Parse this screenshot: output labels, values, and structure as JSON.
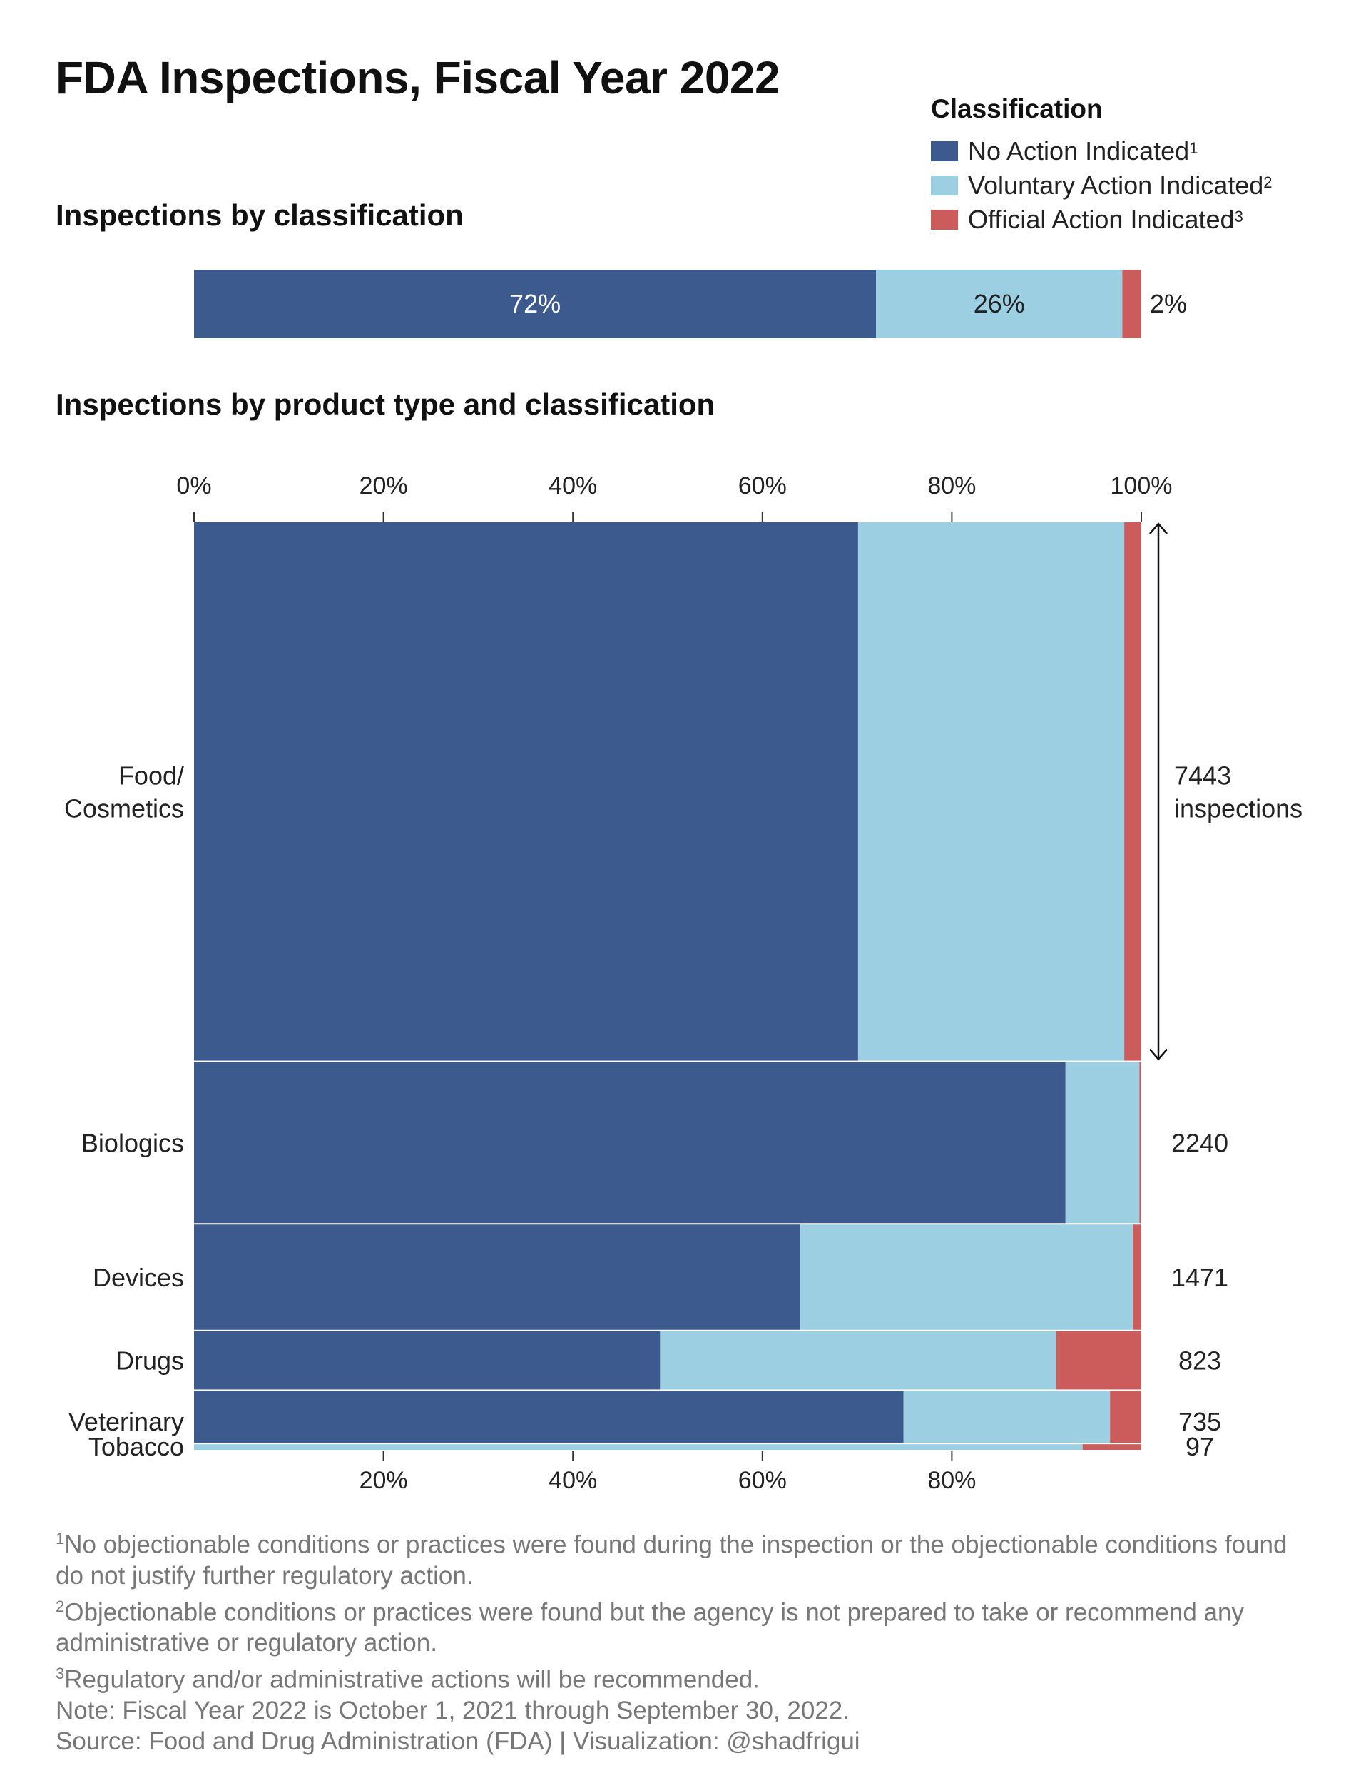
{
  "title": "FDA Inspections, Fiscal Year 2022",
  "colors": {
    "nai": "#3d5a8f",
    "vai": "#9dcfe2",
    "oai": "#cc5b5b",
    "axis": "#333333",
    "footnote": "#777777"
  },
  "legend": {
    "title": "Classification",
    "items": [
      {
        "key": "nai",
        "label": "No Action Indicated",
        "sup": "1"
      },
      {
        "key": "vai",
        "label": "Voluntary Action Indicated",
        "sup": "2"
      },
      {
        "key": "oai",
        "label": "Official Action Indicated",
        "sup": "3"
      }
    ]
  },
  "chart_data": [
    {
      "type": "bar",
      "title": "Inspections by classification",
      "orientation": "horizontal-stacked",
      "series": [
        {
          "name": "No Action Indicated",
          "value": 72,
          "label": "72%"
        },
        {
          "name": "Voluntary Action Indicated",
          "value": 26,
          "label": "26%"
        },
        {
          "name": "Official Action Indicated",
          "value": 2,
          "label": "2%"
        }
      ],
      "xlim": [
        0,
        100
      ]
    },
    {
      "type": "bar",
      "title": "Inspections by product type and classification",
      "variant": "marimekko",
      "xlim": [
        0,
        100
      ],
      "x_ticks_top": [
        "0%",
        "20%",
        "40%",
        "60%",
        "80%",
        "100%"
      ],
      "x_ticks_bottom": [
        "20%",
        "40%",
        "60%",
        "80%"
      ],
      "categories": [
        "Food/\nCosmetics",
        "Biologics",
        "Devices",
        "Drugs",
        "Veterinary",
        "Tobacco"
      ],
      "counts": [
        7443,
        2240,
        1471,
        823,
        735,
        97
      ],
      "count_labels": [
        "7443\ninspections",
        "2240",
        "1471",
        "823",
        "735",
        "97"
      ],
      "series": [
        {
          "name": "No Action Indicated",
          "values": [
            70.1,
            92.0,
            64.0,
            49.2,
            74.9,
            0
          ]
        },
        {
          "name": "Voluntary Action Indicated",
          "values": [
            28.1,
            7.8,
            35.1,
            41.8,
            21.8,
            93.8
          ]
        },
        {
          "name": "Official Action Indicated",
          "values": [
            1.8,
            0.2,
            0.9,
            9.0,
            3.3,
            6.2
          ]
        }
      ]
    }
  ],
  "footnotes": [
    {
      "sup": "1",
      "text": "No objectionable conditions or practices were found during the inspection or the objectionable conditions found do not justify further regulatory action."
    },
    {
      "sup": "2",
      "text": "Objectionable conditions or practices were found but the agency is not prepared to take or recommend any administrative or regulatory action."
    },
    {
      "sup": "3",
      "text": "Regulatory and/or administrative actions will be recommended."
    },
    {
      "sup": "",
      "text": "Note: Fiscal Year 2022 is October 1, 2021 through September 30, 2022."
    },
    {
      "sup": "",
      "text": "Source: Food and Drug Administration (FDA) | Visualization: @shadfrigui"
    }
  ]
}
